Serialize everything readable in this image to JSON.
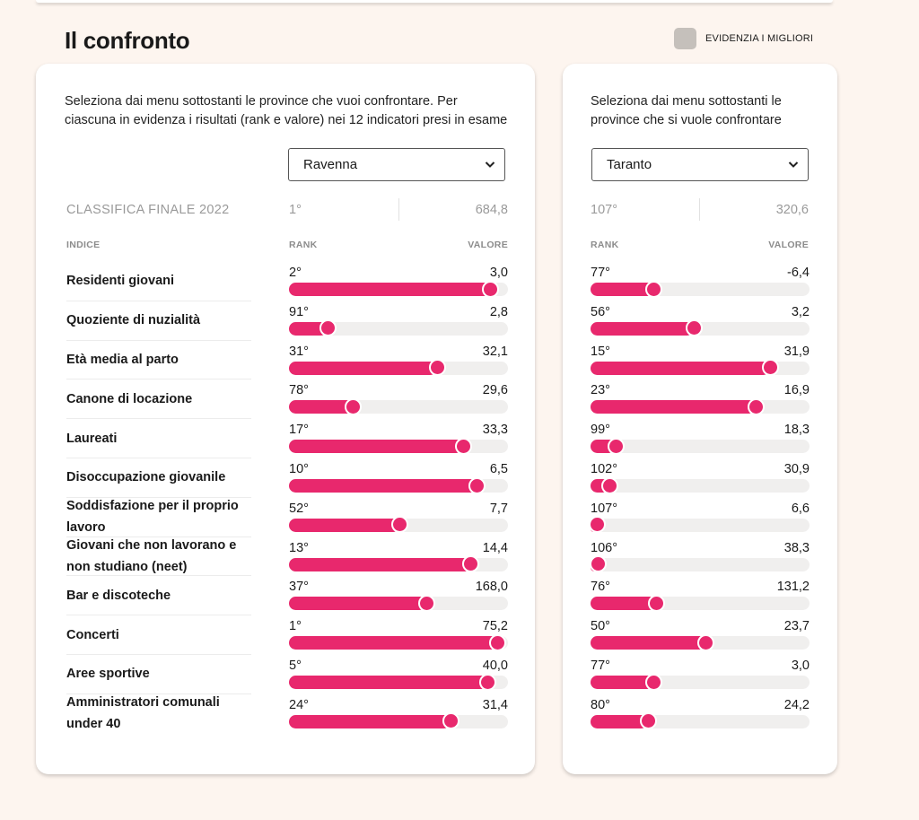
{
  "title": "Il confronto",
  "highlight_label": "EVIDENZIA I MIGLIORI",
  "colors": {
    "bar": "#e8286d",
    "track": "#f0efee",
    "toggle": "#c5c0bb"
  },
  "left": {
    "intro": "Seleziona dai menu sottostanti le province che vuoi confrontare. Per ciascuna in evidenza i risultati (rank e valore) nei 12 indicatori presi in esame",
    "final_label": "CLASSIFICA FINALE 2022",
    "col_index": "INDICE",
    "province": {
      "name": "Ravenna",
      "final_rank": "1°",
      "final_value": "684,8"
    }
  },
  "right": {
    "intro": "Seleziona dai menu sottostanti le province che si vuole confrontare",
    "province": {
      "name": "Taranto",
      "final_rank": "107°",
      "final_value": "320,6"
    }
  },
  "col_rank": "RANK",
  "col_value": "VALORE",
  "chevron": "chevron-down-icon",
  "indicators": [
    {
      "label": "Residenti giovani",
      "a": {
        "rank": "2°",
        "value": "3,0",
        "fill": 0.947
      },
      "b": {
        "rank": "77°",
        "value": "-6,4",
        "fill": 0.278
      }
    },
    {
      "label": "Quoziente di nuzialità",
      "a": {
        "rank": "91°",
        "value": "2,8",
        "fill": 0.157
      },
      "b": {
        "rank": "56°",
        "value": "3,2",
        "fill": 0.471
      }
    },
    {
      "label": "Età media al parto",
      "a": {
        "rank": "31°",
        "value": "32,1",
        "fill": 0.689
      },
      "b": {
        "rank": "15°",
        "value": "31,9",
        "fill": 0.841
      }
    },
    {
      "label": "Canone di locazione",
      "a": {
        "rank": "78°",
        "value": "29,6",
        "fill": 0.281
      },
      "b": {
        "rank": "23°",
        "value": "16,9",
        "fill": 0.771
      }
    },
    {
      "label": "Laureati",
      "a": {
        "rank": "17°",
        "value": "33,3",
        "fill": 0.815
      },
      "b": {
        "rank": "99°",
        "value": "18,3",
        "fill": 0.093
      }
    },
    {
      "label": "Disoccupazione giovanile",
      "a": {
        "rank": "10°",
        "value": "6,5",
        "fill": 0.881
      },
      "b": {
        "rank": "102°",
        "value": "30,9",
        "fill": 0.062
      }
    },
    {
      "label": "Soddisfazione per il proprio lavoro",
      "a": {
        "rank": "52°",
        "value": "7,7",
        "fill": 0.508
      },
      "b": {
        "rank": "107°",
        "value": "6,6",
        "fill": 0.0
      }
    },
    {
      "label": "Giovani che non lavorano e non studiano (neet)",
      "a": {
        "rank": "13°",
        "value": "14,4",
        "fill": 0.852
      },
      "b": {
        "rank": "106°",
        "value": "38,3",
        "fill": 0.008
      }
    },
    {
      "label": "Bar e discoteche",
      "a": {
        "rank": "37°",
        "value": "168,0",
        "fill": 0.636
      },
      "b": {
        "rank": "76°",
        "value": "131,2",
        "fill": 0.287
      }
    },
    {
      "label": "Concerti",
      "a": {
        "rank": "1°",
        "value": "75,2",
        "fill": 0.981
      },
      "b": {
        "rank": "50°",
        "value": "23,7",
        "fill": 0.529
      }
    },
    {
      "label": "Aree sportive",
      "a": {
        "rank": "5°",
        "value": "40,0",
        "fill": 0.934
      },
      "b": {
        "rank": "77°",
        "value": "3,0",
        "fill": 0.278
      }
    },
    {
      "label": "Amministratori comunali under 40",
      "a": {
        "rank": "24°",
        "value": "31,4",
        "fill": 0.754
      },
      "b": {
        "rank": "80°",
        "value": "24,2",
        "fill": 0.249
      }
    }
  ]
}
